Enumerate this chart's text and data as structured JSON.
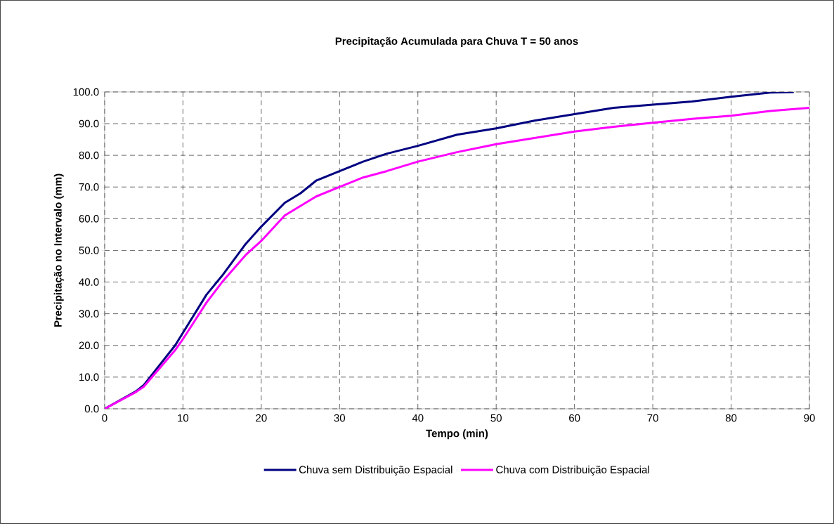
{
  "chart_data": {
    "type": "line",
    "title": "Precipitação Acumulada para Chuva T = 50 anos",
    "xlabel": "Tempo (min)",
    "ylabel": "Precipitação no Intervalo (mm)",
    "xlim": [
      0,
      90
    ],
    "xticks": [
      0,
      10,
      20,
      30,
      40,
      50,
      60,
      70,
      80,
      90
    ],
    "ylim": [
      0,
      100
    ],
    "yticks": [
      {
        "value": 0,
        "label": "0.0"
      },
      {
        "value": 10,
        "label": "10.0"
      },
      {
        "value": 20,
        "label": "20.0"
      },
      {
        "value": 30,
        "label": "30.0"
      },
      {
        "value": 40,
        "label": "40.0"
      },
      {
        "value": 50,
        "label": "50.0"
      },
      {
        "value": 60,
        "label": "60.0"
      },
      {
        "value": 70,
        "label": "70.0"
      },
      {
        "value": 80,
        "label": "80.0"
      },
      {
        "value": 90,
        "label": "90.0"
      },
      {
        "value": 100,
        "label": "100.0"
      }
    ],
    "grid": true,
    "legend": "bottom",
    "marker": "none",
    "line_style": "solid",
    "series": [
      {
        "name": "Chuva sem Distribuição Espacial",
        "color": "#000080",
        "x": [
          0,
          4,
          5,
          9,
          10,
          13,
          15,
          18,
          20,
          23,
          25,
          27,
          30,
          33,
          36,
          40,
          45,
          50,
          55,
          60,
          65,
          70,
          75,
          80,
          85,
          88
        ],
        "values": [
          0,
          5.5,
          7.5,
          20,
          24,
          36,
          42,
          52,
          57.5,
          65,
          68,
          72,
          75,
          78,
          80.5,
          83,
          86.5,
          88.5,
          91,
          93,
          95,
          96,
          97,
          98.5,
          99.8,
          100
        ]
      },
      {
        "name": "Chuva com Distribuição Espacial",
        "color": "#ff00ff",
        "x": [
          0,
          4,
          5,
          9,
          10,
          13,
          15,
          18,
          20,
          23,
          25,
          27,
          30,
          33,
          36,
          40,
          45,
          50,
          55,
          60,
          65,
          70,
          75,
          80,
          85,
          90
        ],
        "values": [
          0,
          5.3,
          7,
          18.5,
          22,
          33.5,
          40,
          48.5,
          53,
          61,
          64,
          67,
          70,
          73,
          75,
          78,
          81,
          83.5,
          85.5,
          87.5,
          89,
          90.3,
          91.5,
          92.5,
          94,
          95
        ]
      }
    ]
  }
}
